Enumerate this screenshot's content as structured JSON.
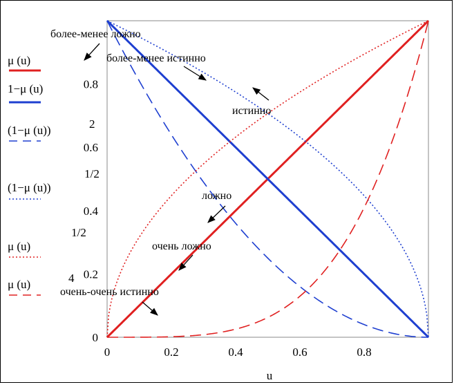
{
  "chart_data": {
    "type": "line",
    "xlabel": "u",
    "ylabel": "",
    "xlim": [
      0,
      1
    ],
    "ylim": [
      0,
      1
    ],
    "x_ticks": [
      "0",
      "0.2",
      "0.4",
      "0.6",
      "0.8"
    ],
    "y_ticks": [
      "0",
      "0.2",
      "0.4",
      "0.6",
      "0.8"
    ],
    "grid": false,
    "legend_position": "left",
    "series": [
      {
        "key": "mu",
        "label": "μ (u)",
        "exponent": "",
        "color": "#e02020",
        "style": "solid",
        "formula": "u",
        "x": [
          0,
          0.5,
          1
        ],
        "values": [
          0,
          0.5,
          1
        ]
      },
      {
        "key": "one_minus_mu",
        "label": "1−μ (u)",
        "exponent": "",
        "color": "#1e3fd0",
        "style": "solid",
        "formula": "1-u",
        "x": [
          0,
          0.5,
          1
        ],
        "values": [
          1,
          0.5,
          0
        ]
      },
      {
        "key": "one_minus_mu_sq",
        "label": "(1−μ (u))",
        "exponent": "2",
        "color": "#1e3fd0",
        "style": "dash",
        "formula": "(1-u)^2",
        "x": [
          0,
          0.25,
          0.5,
          0.75,
          1
        ],
        "values": [
          1,
          0.5625,
          0.25,
          0.0625,
          0
        ]
      },
      {
        "key": "one_minus_mu_sqrt",
        "label": "(1−μ (u))",
        "exponent": "1/2",
        "color": "#1e3fd0",
        "style": "dot",
        "formula": "(1-u)^0.5",
        "x": [
          0,
          0.25,
          0.5,
          0.75,
          1
        ],
        "values": [
          1,
          0.866,
          0.707,
          0.5,
          0
        ]
      },
      {
        "key": "mu_sqrt",
        "label": "μ (u)",
        "exponent": "1/2",
        "color": "#e02020",
        "style": "dot",
        "formula": "u^0.5",
        "x": [
          0,
          0.25,
          0.5,
          0.75,
          1
        ],
        "values": [
          0,
          0.5,
          0.707,
          0.866,
          1
        ]
      },
      {
        "key": "mu_pow4",
        "label": "μ (u)",
        "exponent": "4",
        "color": "#e02020",
        "style": "dash",
        "formula": "u^4",
        "x": [
          0,
          0.25,
          0.5,
          0.75,
          1
        ],
        "values": [
          0,
          0.0039,
          0.0625,
          0.3164,
          1
        ]
      }
    ],
    "annotations": [
      {
        "text": "более-менее ложно",
        "arrow_dir": "down-left"
      },
      {
        "text": "более-менее истинно",
        "arrow_dir": "down-right"
      },
      {
        "text": "истинно",
        "arrow_dir": "up-left"
      },
      {
        "text": "ложно",
        "arrow_dir": "down-left"
      },
      {
        "text": "очень ложно",
        "arrow_dir": "down-left"
      },
      {
        "text": "очень-очень истинно",
        "arrow_dir": "down-right"
      }
    ]
  }
}
